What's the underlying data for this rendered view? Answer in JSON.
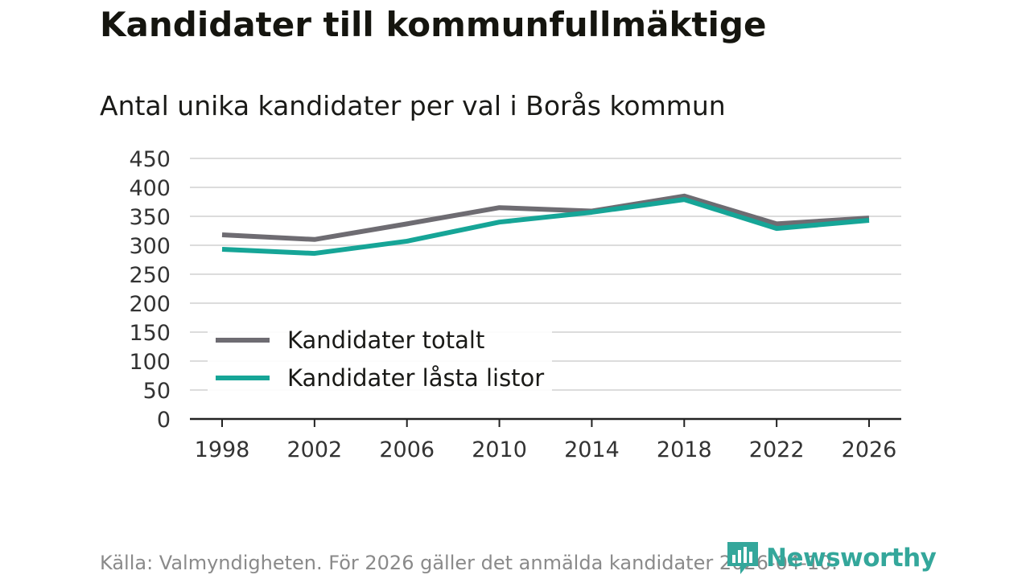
{
  "title": "Kandidater till kommunfullmäktige",
  "subtitle": "Antal unika kandidater per val i Borås kommun",
  "source": "Källa: Valmyndigheten. För 2026 gäller det anmälda kandidater 2026-04-10.",
  "brand": {
    "name": "Newsworthy",
    "icon": "bar-chart-logo-icon",
    "color": "#34a79b"
  },
  "colors": {
    "totalt": "#6e6c72",
    "lasta": "#16a597",
    "grid": "#dcdcdc",
    "axis": "#222222"
  },
  "chart_data": {
    "type": "line",
    "title": "Kandidater till kommunfullmäktige",
    "subtitle": "Antal unika kandidater per val i Borås kommun",
    "xlabel": "",
    "ylabel": "",
    "x": [
      "1998",
      "2002",
      "2006",
      "2010",
      "2014",
      "2018",
      "2022",
      "2026"
    ],
    "ylim": [
      0,
      450
    ],
    "yticks": [
      "0",
      "50",
      "100",
      "150",
      "200",
      "250",
      "300",
      "350",
      "400",
      "450"
    ],
    "grid": true,
    "legend_position": "bottom-left",
    "series": [
      {
        "name": "Kandidater totalt",
        "values": [
          318,
          310,
          337,
          365,
          359,
          385,
          337,
          347
        ]
      },
      {
        "name": "Kandidater låsta listor",
        "values": [
          293,
          286,
          307,
          340,
          357,
          379,
          329,
          343
        ]
      }
    ]
  }
}
